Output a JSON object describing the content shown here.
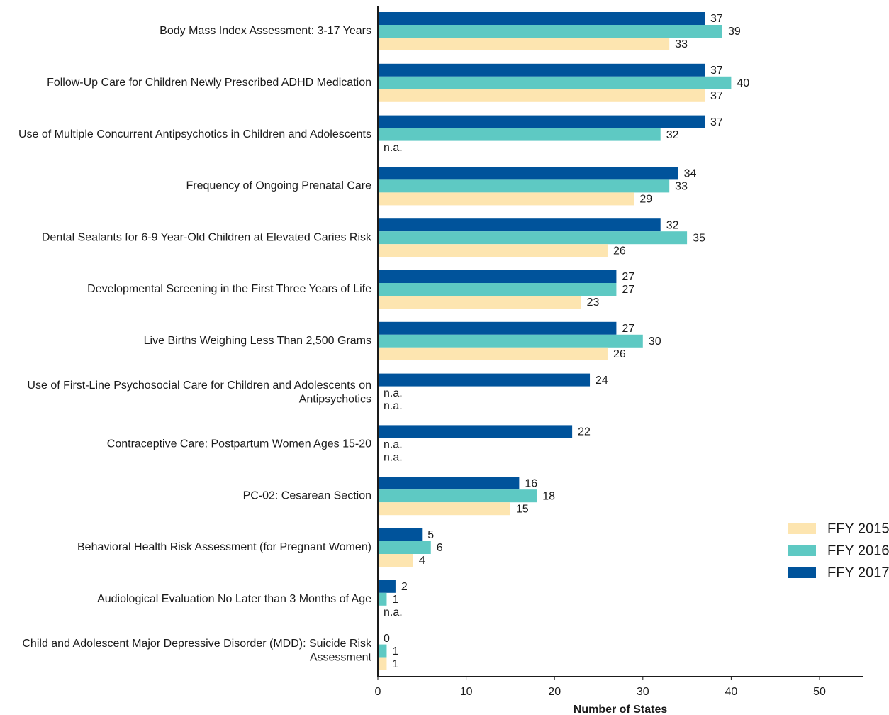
{
  "chart_data": {
    "type": "bar",
    "orientation": "horizontal",
    "categories": [
      [
        "Body Mass Index Assessment: 3-17 Years"
      ],
      [
        "Follow-Up Care for Children Newly Prescribed ADHD Medication"
      ],
      [
        "Use of Multiple Concurrent Antipsychotics in Children and Adolescents"
      ],
      [
        "Frequency of Ongoing Prenatal Care"
      ],
      [
        "Dental Sealants for 6-9 Year-Old Children at Elevated Caries Risk"
      ],
      [
        "Developmental Screening in the First Three Years of Life"
      ],
      [
        "Live Births Weighing Less Than 2,500 Grams"
      ],
      [
        "Use of First-Line Psychosocial Care for Children and Adolescents on",
        "Antipsychotics"
      ],
      [
        "Contraceptive Care: Postpartum Women Ages 15-20"
      ],
      [
        "PC-02: Cesarean Section"
      ],
      [
        "Behavioral Health Risk Assessment (for Pregnant Women)"
      ],
      [
        "Audiological Evaluation No Later than 3 Months of Age"
      ],
      [
        "Child and Adolescent Major Depressive Disorder (MDD): Suicide Risk",
        "Assessment"
      ]
    ],
    "series": [
      {
        "name": "FFY 2017",
        "color": "#00539b",
        "values": [
          37,
          37,
          37,
          34,
          32,
          27,
          27,
          24,
          22,
          16,
          5,
          2,
          0
        ]
      },
      {
        "name": "FFY 2016",
        "color": "#5ec9c3",
        "values": [
          39,
          40,
          32,
          33,
          35,
          27,
          30,
          null,
          null,
          18,
          6,
          1,
          1
        ]
      },
      {
        "name": "FFY 2015",
        "color": "#fde5b0",
        "values": [
          33,
          37,
          null,
          29,
          26,
          23,
          26,
          null,
          null,
          15,
          4,
          null,
          1
        ]
      }
    ],
    "na_label": "n.a.",
    "xlabel": "Number of States",
    "xlim": [
      0,
      55
    ],
    "xticks": [
      0,
      10,
      20,
      30,
      40,
      50
    ],
    "legend": {
      "placement": "right",
      "order": [
        "FFY 2015",
        "FFY 2016",
        "FFY 2017"
      ]
    },
    "grid": false
  }
}
